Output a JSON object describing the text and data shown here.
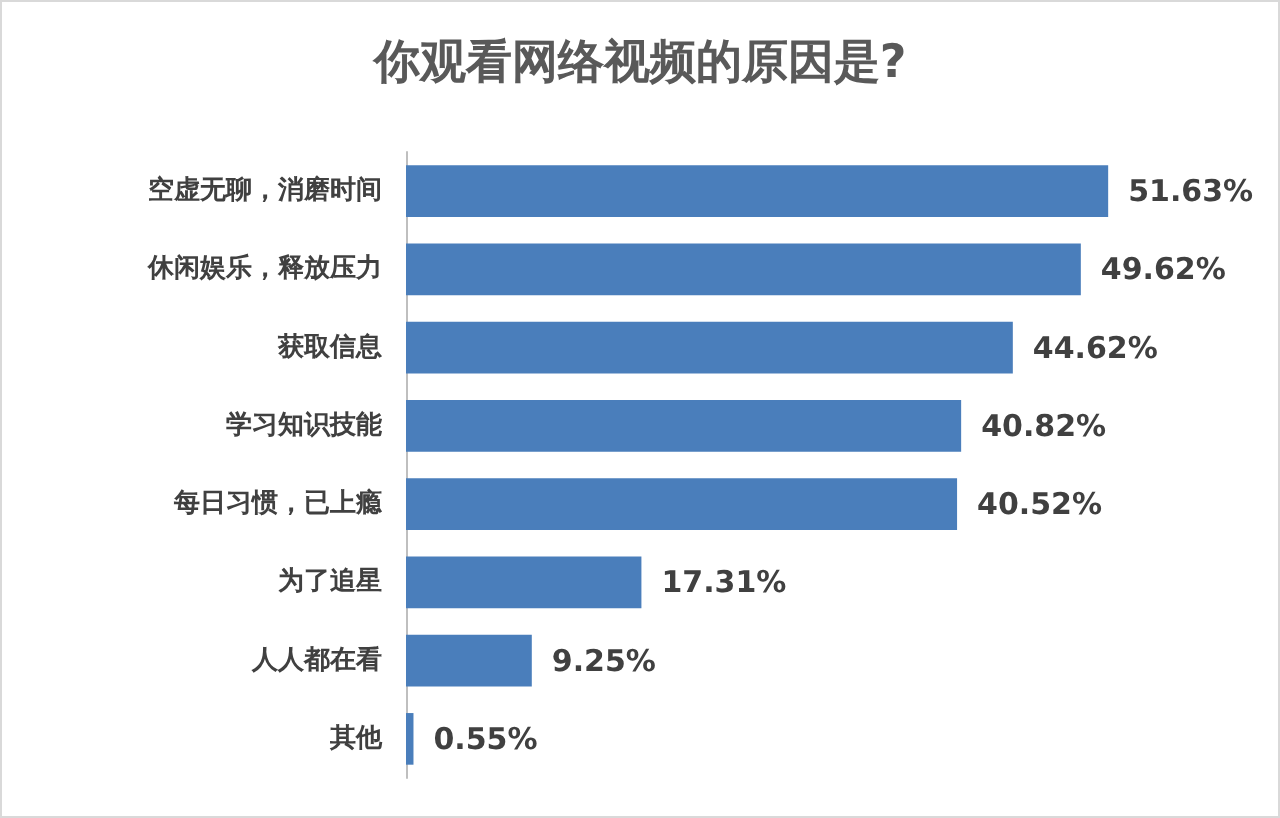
{
  "chart_data": {
    "type": "bar",
    "orientation": "horizontal",
    "title": "你观看网络视频的原因是?",
    "categories": [
      "空虚无聊，消磨时间",
      "休闲娱乐，释放压力",
      "获取信息",
      "学习知识技能",
      "每日习惯，已上瘾",
      "为了追星",
      "人人都在看",
      "其他"
    ],
    "values": [
      51.63,
      49.62,
      44.62,
      40.82,
      40.52,
      17.31,
      9.25,
      0.55
    ],
    "value_labels": [
      "51.63%",
      "49.62%",
      "44.62%",
      "40.82%",
      "40.52%",
      "17.31%",
      "9.25%",
      "0.55%"
    ],
    "color": "#4a7ebb",
    "tick_labels": "y"
  }
}
